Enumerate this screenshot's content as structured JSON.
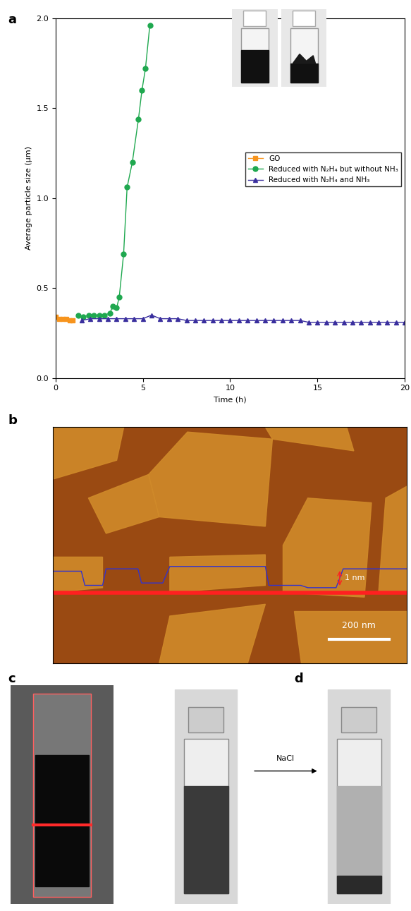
{
  "chart_data": {
    "type": "line",
    "panel_label": "a",
    "x_label": "Time (h)",
    "y_label": "Average particle size (μm)",
    "xlim": [
      0,
      20
    ],
    "xticks": [
      0,
      5,
      10,
      15,
      20
    ],
    "ylim": [
      0,
      2
    ],
    "yticks": [
      {
        "value": 0,
        "label": "0.0"
      },
      0.5,
      {
        "value": 1,
        "label": "1.0"
      },
      1.5,
      {
        "value": 2,
        "label": "2.0"
      }
    ],
    "legend": "center right",
    "series": [
      {
        "name": "GO",
        "color": "#f7941d",
        "marker": "square",
        "line_style": "solid",
        "x": [
          0.0,
          0.2,
          0.4,
          0.6,
          0.8,
          1.0
        ],
        "values": [
          0.34,
          0.33,
          0.33,
          0.33,
          0.32,
          0.32
        ]
      },
      {
        "name": "Reduced with N₂H₄ but without NH₃",
        "color": "#1fa84f",
        "marker": "circle",
        "line_style": "solid",
        "x": [
          1.3,
          1.6,
          1.9,
          2.2,
          2.5,
          2.8,
          3.1,
          3.3,
          3.5,
          3.65,
          3.9,
          4.1,
          4.4,
          4.75,
          4.95,
          5.15,
          5.4
        ],
        "values": [
          0.35,
          0.34,
          0.35,
          0.35,
          0.35,
          0.35,
          0.36,
          0.4,
          0.39,
          0.45,
          0.69,
          1.06,
          1.2,
          1.44,
          1.6,
          1.72,
          1.96
        ]
      },
      {
        "name": "Reduced with N₂H₄ and NH₃",
        "color": "#3a2f9e",
        "marker": "triangle",
        "line_style": "solid",
        "x": [
          1.5,
          2.0,
          2.5,
          3.0,
          3.5,
          4.0,
          4.5,
          5.0,
          5.5,
          6.0,
          6.5,
          7.0,
          7.5,
          8.0,
          8.5,
          9.0,
          9.5,
          10.0,
          10.5,
          11.0,
          11.5,
          12.0,
          12.5,
          13.0,
          13.5,
          14.0,
          14.5,
          15.0,
          15.5,
          16.0,
          16.5,
          17.0,
          17.5,
          18.0,
          18.5,
          19.0,
          19.5,
          20.0
        ],
        "values": [
          0.32,
          0.33,
          0.33,
          0.33,
          0.33,
          0.33,
          0.33,
          0.33,
          0.35,
          0.33,
          0.33,
          0.33,
          0.32,
          0.32,
          0.32,
          0.32,
          0.32,
          0.32,
          0.32,
          0.32,
          0.32,
          0.32,
          0.32,
          0.32,
          0.32,
          0.32,
          0.31,
          0.31,
          0.31,
          0.31,
          0.31,
          0.31,
          0.31,
          0.31,
          0.31,
          0.31,
          0.31,
          0.31
        ]
      }
    ]
  },
  "afm_image": {
    "panel_label": "b",
    "scale_bar": "200 nm",
    "height_marker": "1 nm"
  },
  "photos": {
    "c": {
      "panel_label": "c"
    },
    "d": {
      "panel_label": "d",
      "arrow_label": "NaCl"
    }
  }
}
